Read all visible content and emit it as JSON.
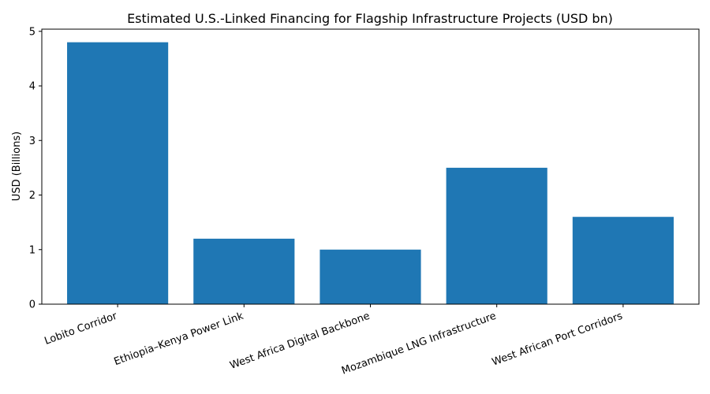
{
  "chart_data": {
    "type": "bar",
    "title": "Estimated U.S.-Linked Financing for Flagship Infrastructure Projects (USD bn)",
    "xlabel": "",
    "ylabel": "USD (Billions)",
    "categories": [
      "Lobito Corridor",
      "Ethiopia–Kenya Power Link",
      "West Africa Digital Backbone",
      "Mozambique LNG Infrastructure",
      "West African Port Corridors"
    ],
    "values": [
      4.8,
      1.2,
      1.0,
      2.5,
      1.6
    ],
    "ylim": [
      0,
      5.04
    ],
    "yticks": [
      0,
      1,
      2,
      3,
      4,
      5
    ],
    "grid": false,
    "legend": "none",
    "bar_color": "#1f77b4"
  }
}
